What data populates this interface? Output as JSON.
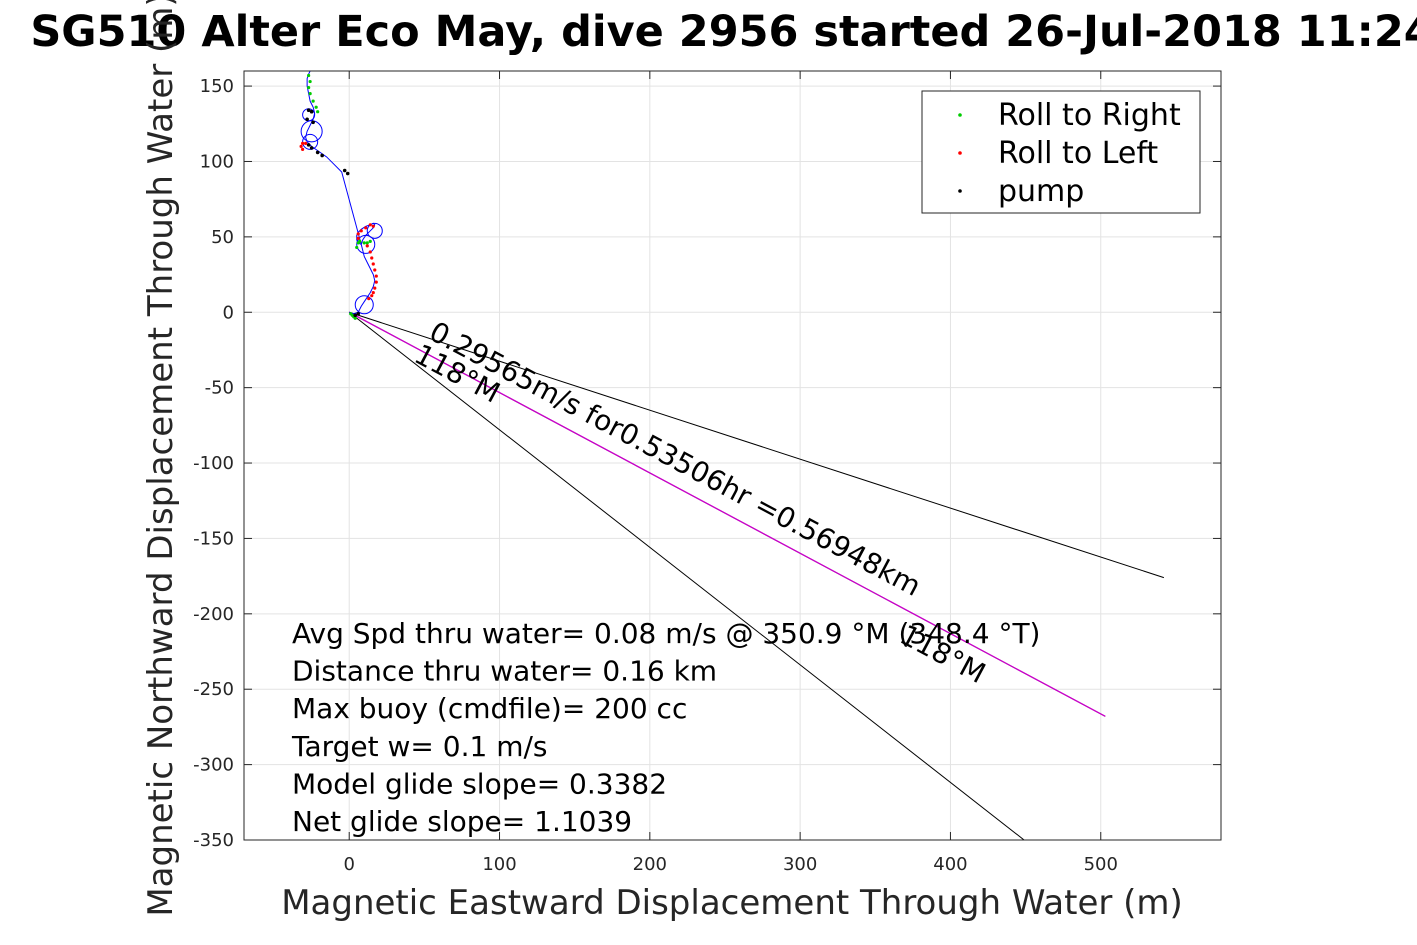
{
  "chart_data": {
    "type": "scatter",
    "title": "SG510 Alter Eco May, dive 2956 started 26-Jul-2018 11:24",
    "xlabel": "Magnetic Eastward Displacement Through Water (m)",
    "ylabel": "Magnetic Northward Displacement Through Water (m)",
    "xlim": [
      -70,
      580
    ],
    "ylim": [
      -350,
      160
    ],
    "xticks": [
      0,
      100,
      200,
      300,
      400,
      500
    ],
    "yticks": [
      150,
      100,
      50,
      0,
      -50,
      -100,
      -150,
      -200,
      -250,
      -300,
      -350
    ],
    "grid": true,
    "legend_position": "top-right",
    "colors": {
      "roll_right": "#00cc00",
      "roll_left": "#ff0000",
      "pump": "#000000",
      "track": "#0000ff",
      "current_vector": "#cc00cc",
      "rays": "#000000"
    },
    "series": [
      {
        "name": "Roll to Right",
        "marker": "dot",
        "color": "#00cc00"
      },
      {
        "name": "Roll to Left",
        "marker": "dot",
        "color": "#ff0000"
      },
      {
        "name": "pump",
        "marker": "dot",
        "color": "#000000"
      }
    ],
    "track": [
      [
        0,
        0
      ],
      [
        3,
        -1
      ],
      [
        6,
        0
      ],
      [
        8,
        4
      ],
      [
        10,
        7
      ],
      [
        12,
        10
      ],
      [
        14,
        13
      ],
      [
        16,
        17
      ],
      [
        17,
        21
      ],
      [
        16,
        25
      ],
      [
        14,
        29
      ],
      [
        12,
        33
      ],
      [
        10,
        37
      ],
      [
        9,
        41
      ],
      [
        8,
        45
      ],
      [
        9,
        48
      ],
      [
        11,
        51
      ],
      [
        14,
        54
      ],
      [
        16,
        56
      ],
      [
        17,
        58
      ],
      [
        16,
        59
      ],
      [
        14,
        58
      ],
      [
        11,
        57
      ],
      [
        8,
        55
      ],
      [
        6,
        53
      ],
      [
        5,
        51
      ],
      [
        5,
        48
      ],
      [
        6,
        46
      ],
      [
        8,
        45
      ],
      [
        -5,
        93
      ],
      [
        -15,
        103
      ],
      [
        -25,
        110
      ],
      [
        -28,
        113
      ],
      [
        -29,
        116
      ],
      [
        -28,
        120
      ],
      [
        -26,
        124
      ],
      [
        -24,
        128
      ],
      [
        -23,
        132
      ],
      [
        -24,
        136
      ],
      [
        -26,
        140
      ],
      [
        -27,
        145
      ],
      [
        -28,
        150
      ],
      [
        -28,
        155
      ],
      [
        -27,
        158
      ],
      [
        -26,
        160
      ]
    ],
    "roll_right_points": [
      [
        -27,
        157
      ],
      [
        -26,
        153
      ],
      [
        -27,
        149
      ],
      [
        -26,
        145
      ],
      [
        -24,
        140
      ],
      [
        -22,
        136
      ],
      [
        -21,
        133
      ],
      [
        6,
        46
      ],
      [
        7,
        47
      ],
      [
        10,
        46
      ],
      [
        12,
        46
      ],
      [
        14,
        47
      ],
      [
        5,
        43
      ],
      [
        1,
        -1
      ],
      [
        3,
        -3
      ],
      [
        4,
        -4
      ],
      [
        2,
        -2
      ]
    ],
    "roll_left_points": [
      [
        -31,
        112
      ],
      [
        -32,
        110
      ],
      [
        -31,
        108
      ],
      [
        -29,
        112
      ],
      [
        14,
        58
      ],
      [
        16,
        57
      ],
      [
        11,
        56
      ],
      [
        8,
        54
      ],
      [
        6,
        52
      ],
      [
        6,
        49
      ],
      [
        12,
        44
      ],
      [
        14,
        40
      ],
      [
        15,
        36
      ],
      [
        16,
        32
      ],
      [
        17,
        28
      ],
      [
        18,
        24
      ],
      [
        18,
        20
      ],
      [
        17,
        16
      ],
      [
        16,
        13
      ],
      [
        15,
        11
      ],
      [
        13,
        9
      ]
    ],
    "pump_points": [
      [
        -27,
        134
      ],
      [
        -25,
        133
      ],
      [
        -28,
        128
      ],
      [
        -24,
        126
      ],
      [
        -27,
        111
      ],
      [
        -25,
        109
      ],
      [
        -21,
        106
      ],
      [
        -18,
        104
      ],
      [
        -3,
        94
      ],
      [
        -1,
        92
      ],
      [
        4,
        -2
      ],
      [
        6,
        -1
      ]
    ],
    "circles": [
      {
        "x": -27,
        "y": 131,
        "r": 4
      },
      {
        "x": -25,
        "y": 120,
        "r": 7
      },
      {
        "x": -26,
        "y": 113,
        "r": 5
      },
      {
        "x": 17,
        "y": 54,
        "r": 5
      },
      {
        "x": 11,
        "y": 45,
        "r": 6
      },
      {
        "x": 10,
        "y": 5,
        "r": 6
      }
    ],
    "rays": [
      {
        "from": [
          0,
          0
        ],
        "to": [
          542,
          -176
        ]
      },
      {
        "from": [
          0,
          0
        ],
        "to": [
          503,
          -268
        ]
      },
      {
        "from": [
          0,
          0
        ],
        "to": [
          449,
          -350
        ]
      }
    ],
    "current_vector": {
      "from": [
        0,
        0
      ],
      "to": [
        503,
        -268
      ]
    },
    "ray_labels": [
      {
        "text": "0.29565m/s for0.53506hr =0.56948km",
        "x": 52,
        "y": -17,
        "angle_deg": 28.0
      },
      {
        "text": "118°M",
        "x": 42,
        "y": -32,
        "angle_deg": 28.0
      },
      {
        "text": "118°M",
        "x": 365,
        "y": -218,
        "angle_deg": 28.0
      }
    ],
    "annotations": [
      "Avg Spd thru water=  0.08 m/s @ 350.9 °M (348.4 °T)",
      "Distance thru water=  0.16 km",
      "Max buoy (cmdfile)= 200 cc",
      "Target w= 0.1 m/s",
      "Model glide slope= 0.3382",
      "Net glide slope= 1.1039"
    ]
  }
}
